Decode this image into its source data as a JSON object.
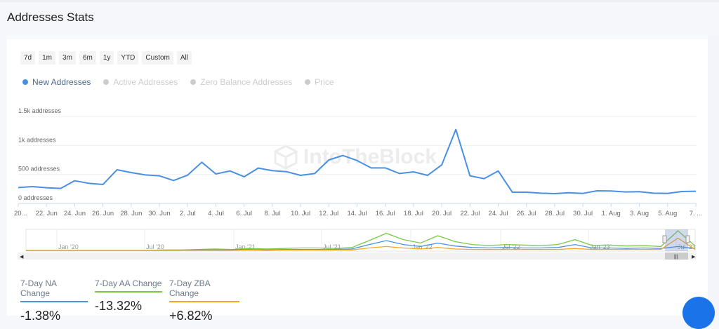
{
  "title": "Addresses Stats",
  "ranges": [
    "7d",
    "1m",
    "3m",
    "6m",
    "1y",
    "YTD",
    "Custom",
    "All"
  ],
  "legend": [
    {
      "label": "New Addresses",
      "active": true
    },
    {
      "label": "Active Addresses",
      "active": false
    },
    {
      "label": "Zero Balance Addresses",
      "active": false
    },
    {
      "label": "Price",
      "active": false
    }
  ],
  "watermark": "IntoTheBlock",
  "chart_data": {
    "type": "line",
    "series": [
      {
        "name": "New Addresses",
        "color": "#4a90e2",
        "values": [
          274,
          290,
          270,
          258,
          391,
          347,
          327,
          581,
          532,
          492,
          476,
          395,
          488,
          710,
          508,
          560,
          460,
          609,
          565,
          548,
          484,
          516,
          750,
          827,
          740,
          613,
          613,
          516,
          544,
          484,
          665,
          1274,
          476,
          427,
          560,
          194,
          194,
          177,
          169,
          185,
          173,
          218,
          214,
          198,
          202,
          177,
          173,
          206,
          210
        ]
      }
    ],
    "x_tick_labels": [
      "20...",
      "22. Jun",
      "24. Jun",
      "26. Jun",
      "28. Jun",
      "30. Jun",
      "2. Jul",
      "4. Jul",
      "6. Jul",
      "8. Jul",
      "10. Jul",
      "12. Jul",
      "14. Jul",
      "16. Jul",
      "18. Jul",
      "20. Jul",
      "22. Jul",
      "24. Jul",
      "26. Jul",
      "28. Jul",
      "30. Jul",
      "1. Aug",
      "3. Aug",
      "5. Aug",
      "7. ..."
    ],
    "y_tick_labels": [
      "0 addresses",
      "500 addresses",
      "1k addresses",
      "1.5k addresses"
    ],
    "y_ticks": [
      0,
      500,
      1000,
      1500
    ],
    "ylim": [
      0,
      1500
    ],
    "x_range": [
      "20 Jun",
      "7 Aug"
    ],
    "grid": true
  },
  "navigator": {
    "labels": [
      "Jan '20",
      "Jul '20",
      "Jan '21",
      "Jul '21",
      "Jan '22",
      "Jul '22",
      "Jan '23",
      "Jul '23"
    ],
    "series": [
      {
        "name": "Active Addresses",
        "color": "#7ac943",
        "values": [
          0,
          0,
          0,
          0,
          0,
          0,
          0,
          0,
          1,
          1,
          2,
          3,
          2,
          4,
          3,
          4,
          5,
          5,
          4,
          6,
          20,
          35,
          22,
          15,
          30,
          18,
          12,
          10,
          12,
          11,
          10,
          12,
          22,
          10,
          11,
          9,
          10,
          8,
          40,
          9
        ]
      },
      {
        "name": "New Addresses",
        "color": "#4a90e2",
        "values": [
          0,
          0,
          0,
          0,
          0,
          0,
          0,
          0,
          0,
          0,
          1,
          1,
          1,
          2,
          1,
          2,
          2,
          2,
          2,
          3,
          12,
          20,
          12,
          8,
          15,
          9,
          6,
          5,
          6,
          5,
          5,
          6,
          12,
          5,
          5,
          4,
          5,
          4,
          8,
          4
        ]
      },
      {
        "name": "Zero Balance Addresses",
        "color": "#f5a623",
        "values": [
          0,
          0,
          0,
          0,
          0,
          0,
          0,
          0,
          0,
          0,
          0,
          0,
          0,
          1,
          0,
          1,
          1,
          1,
          1,
          1,
          5,
          8,
          5,
          3,
          6,
          3,
          2,
          2,
          2,
          2,
          2,
          2,
          4,
          2,
          2,
          2,
          2,
          2,
          25,
          2
        ]
      }
    ]
  },
  "stats": [
    {
      "label": "7-Day NA Change",
      "value": "-1.38%",
      "color": "#4a90e2"
    },
    {
      "label": "7-Day AA Change",
      "value": "-13.32%",
      "color": "#7ac943"
    },
    {
      "label": "7-Day ZBA Change",
      "value": "+6.82%",
      "color": "#f5a623"
    }
  ]
}
